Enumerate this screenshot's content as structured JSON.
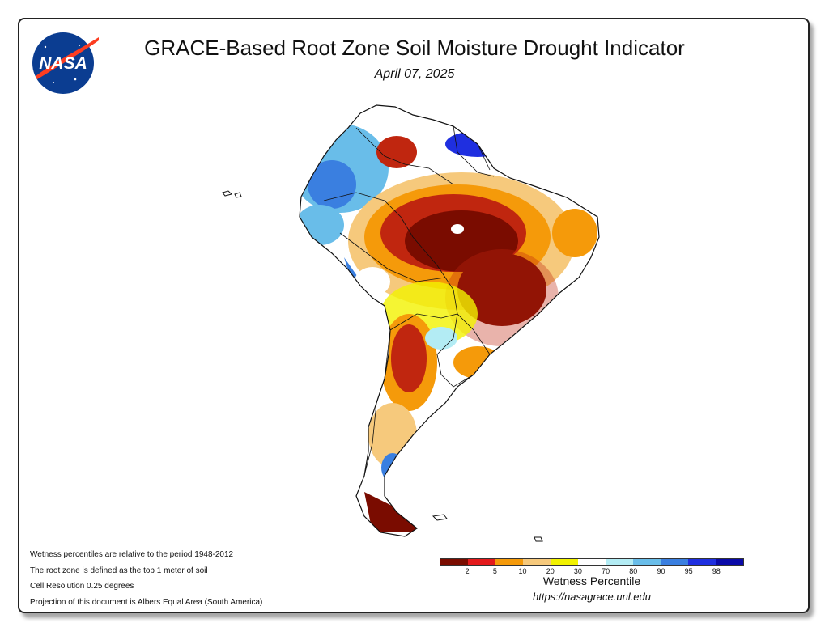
{
  "header": {
    "title": "GRACE-Based Root Zone Soil Moisture Drought Indicator",
    "date": "April 07, 2025",
    "logo_text": "NASA"
  },
  "notes": [
    "Wetness percentiles are relative to the period 1948-2012",
    "The root zone is defined as the top 1 meter of soil",
    "Cell Resolution 0.25 degrees",
    "Projection of this document is Albers Equal Area (South America)"
  ],
  "legend": {
    "title": "Wetness Percentile",
    "ticks": [
      "2",
      "5",
      "10",
      "20",
      "30",
      "70",
      "80",
      "90",
      "95",
      "98"
    ],
    "colors": [
      "#7a0c00",
      "#e31a1c",
      "#f59a0a",
      "#f6c97c",
      "#f2f200",
      "#ffffff",
      "#b3ecf4",
      "#69bde9",
      "#3a7fe0",
      "#1f2fe0",
      "#0a0aa8"
    ]
  },
  "url": "https://nasagrace.unl.edu",
  "map": {
    "region": "South America",
    "colors": {
      "extreme_dry": "#7a0c00",
      "severe_dry": "#c0260f",
      "moderate_dry": "#f59a0a",
      "abnormal_dry": "#f6c97c",
      "slight_dry": "#f2f200",
      "normal": "#ffffff",
      "slight_wet": "#b3ecf4",
      "wet": "#69bde9",
      "very_wet": "#3a7fe0",
      "extreme_wet": "#1f2fe0"
    }
  }
}
